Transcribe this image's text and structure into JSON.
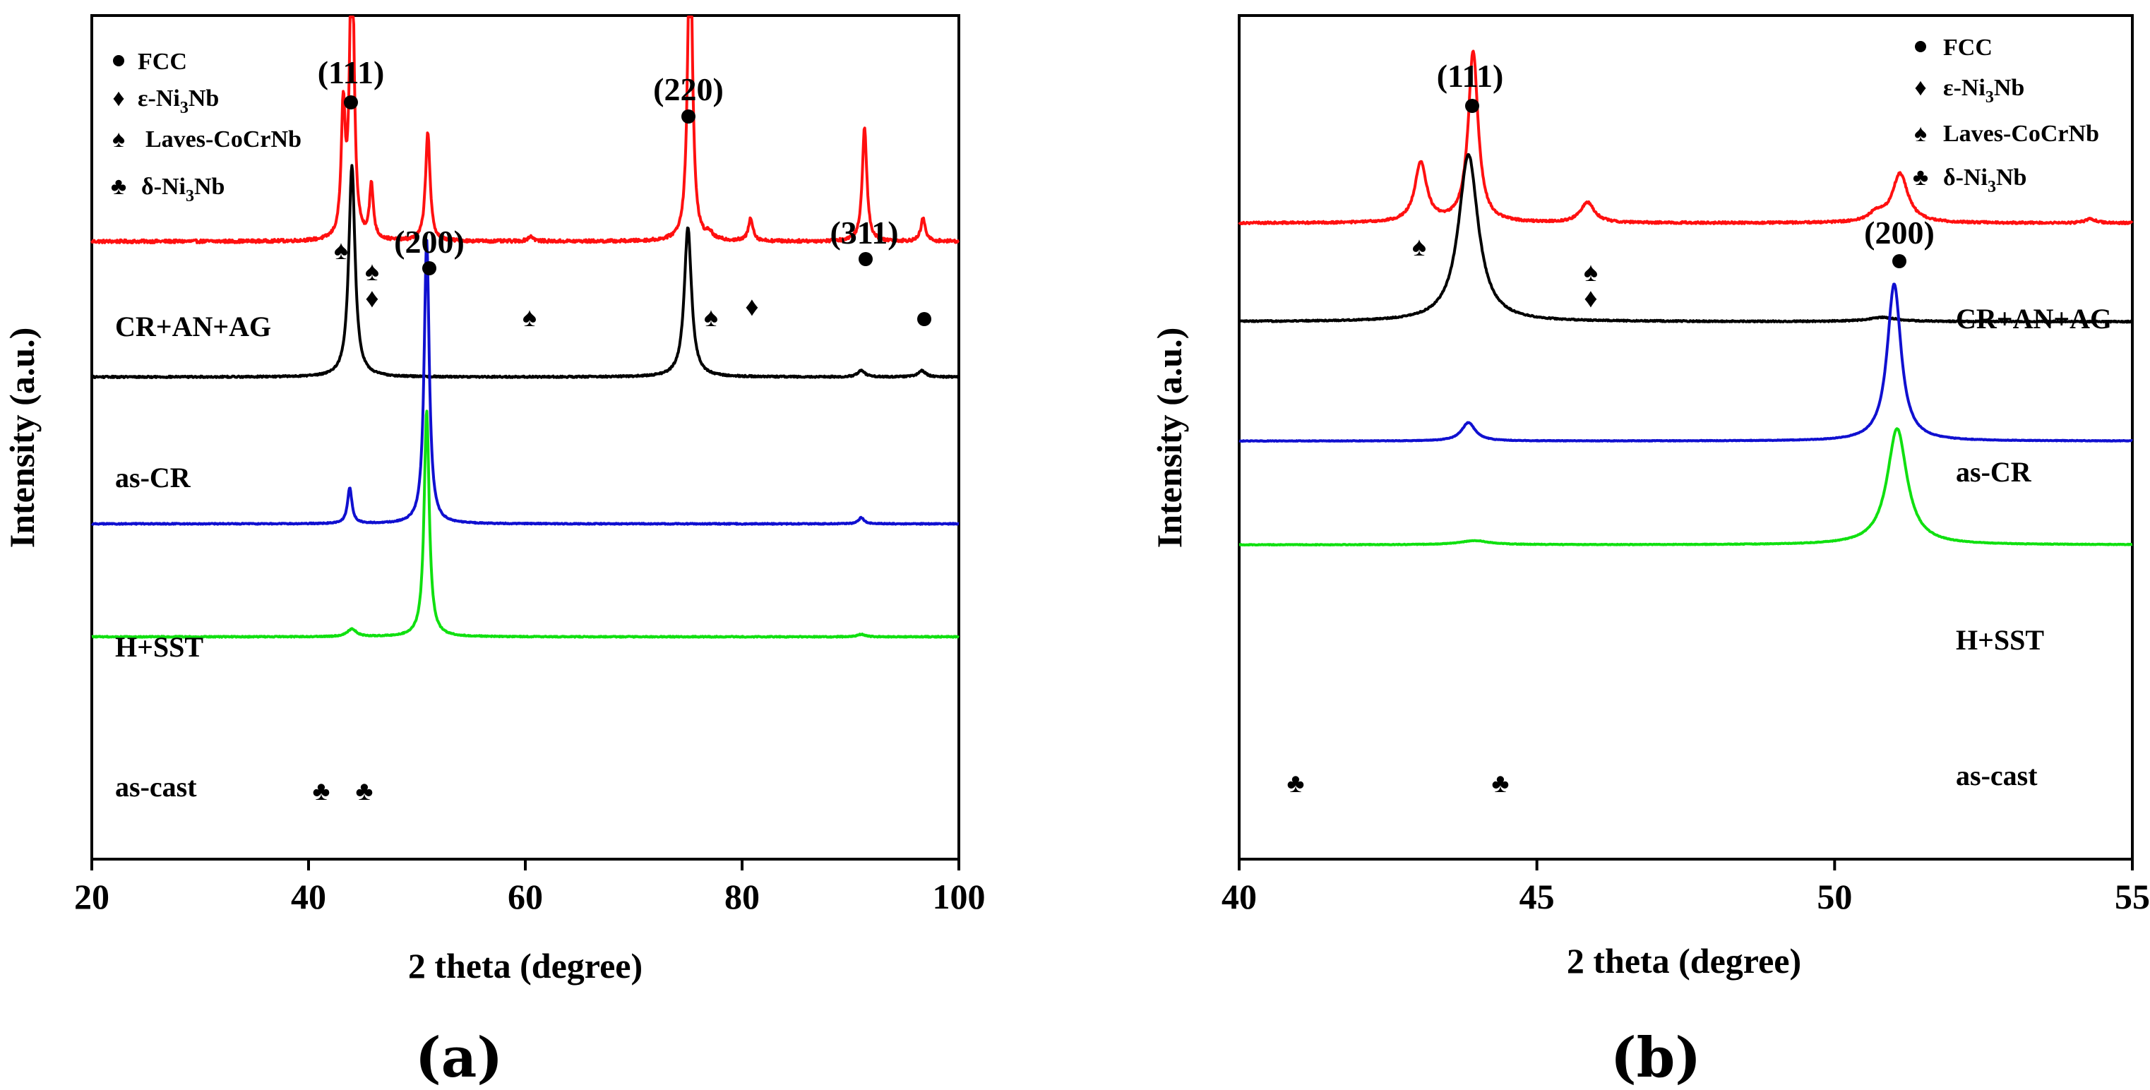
{
  "chart_data": [
    {
      "type": "line",
      "panel_caption": "(a)",
      "xlabel": "2 theta (degree)",
      "ylabel": "Intensity (a.u.)",
      "xlim": [
        20,
        100
      ],
      "xticks": [
        20,
        40,
        60,
        80,
        100
      ],
      "legend": [
        {
          "glyph": "●",
          "text": "FCC"
        },
        {
          "glyph": "♦",
          "text": "ε-Ni",
          "sub": "3",
          "text2": "Nb"
        },
        {
          "glyph": "♠",
          "text": "Laves-CoCrNb"
        },
        {
          "glyph": "♣",
          "text": "δ-Ni",
          "sub": "3",
          "text2": "Nb"
        }
      ],
      "series": [
        {
          "name": "CR+AN+AG",
          "color": "#ff1010",
          "baseline": 0.5,
          "noise": 0.06,
          "peaks": [
            [
              43.2,
              5.0,
              0.22
            ],
            [
              44.0,
              13.3,
              0.22
            ],
            [
              45.8,
              2.1,
              0.22
            ],
            [
              51.0,
              4.3,
              0.25
            ],
            [
              60.5,
              0.2,
              0.3
            ],
            [
              75.2,
              13.2,
              0.25
            ],
            [
              77.0,
              0.25,
              0.3
            ],
            [
              80.8,
              0.9,
              0.25
            ],
            [
              91.3,
              4.5,
              0.25
            ],
            [
              96.7,
              0.9,
              0.25
            ]
          ]
        },
        {
          "name": "as-CR",
          "color": "#000000",
          "baseline": 2.9,
          "noise": 0.03,
          "peaks": [
            [
              44.0,
              8.3,
              0.35
            ],
            [
              75.0,
              5.9,
              0.4
            ],
            [
              91.0,
              0.25,
              0.4
            ],
            [
              96.6,
              0.25,
              0.4
            ]
          ]
        },
        {
          "name": "H+SST",
          "color": "#1010d0",
          "baseline": 5.5,
          "noise": 0.02,
          "peaks": [
            [
              43.8,
              1.4,
              0.25
            ],
            [
              50.9,
              11.2,
              0.28
            ],
            [
              91.0,
              0.25,
              0.3
            ]
          ]
        },
        {
          "name": "as-cast",
          "color": "#10e010",
          "baseline": 7.5,
          "noise": 0.02,
          "peaks": [
            [
              44.0,
              0.3,
              0.5
            ],
            [
              50.9,
              8.9,
              0.28
            ],
            [
              91.0,
              0.1,
              0.4
            ]
          ]
        }
      ],
      "annotations": [
        {
          "text": "(111)",
          "x": 44.0,
          "kind": "peak"
        },
        {
          "text": "(200)",
          "x": 51.0,
          "kind": "peak"
        },
        {
          "text": "(220)",
          "x": 75.2,
          "kind": "peak"
        },
        {
          "text": "(311)",
          "x": 91.3,
          "kind": "peak"
        }
      ]
    },
    {
      "type": "line",
      "panel_caption": "(b)",
      "xlabel": "2 theta (degree)",
      "ylabel": "Intensity (a.u.)",
      "xlim": [
        40,
        55
      ],
      "xticks": [
        40,
        45,
        50,
        55
      ],
      "legend": [
        {
          "glyph": "●",
          "text": "FCC"
        },
        {
          "glyph": "♦",
          "text": "ε-Ni",
          "sub": "3",
          "text2": "Nb"
        },
        {
          "glyph": "♠",
          "text": "Laves-CoCrNb"
        },
        {
          "glyph": "♣",
          "text": "δ-Ni",
          "sub": "3",
          "text2": "Nb"
        }
      ],
      "series": [
        {
          "name": "CR+AN+AG",
          "color": "#ff1010",
          "baseline": 0.5,
          "noise": 0.05,
          "peaks": [
            [
              43.05,
              2.9,
              0.12
            ],
            [
              43.93,
              8.4,
              0.1
            ],
            [
              45.85,
              1.0,
              0.14
            ],
            [
              50.7,
              0.4,
              0.15
            ],
            [
              51.1,
              2.4,
              0.16
            ],
            [
              54.3,
              0.2,
              0.1
            ]
          ]
        },
        {
          "name": "as-CR",
          "color": "#000000",
          "baseline": 2.4,
          "noise": 0.03,
          "peaks": [
            [
              43.85,
              8.2,
              0.2
            ],
            [
              50.8,
              0.2,
              0.3
            ]
          ]
        },
        {
          "name": "H+SST",
          "color": "#1010d0",
          "baseline": 4.7,
          "noise": 0.015,
          "peaks": [
            [
              43.85,
              0.9,
              0.14
            ],
            [
              51.0,
              7.7,
              0.14
            ]
          ]
        },
        {
          "name": "as-cast",
          "color": "#10e010",
          "baseline": 6.7,
          "noise": 0.015,
          "peaks": [
            [
              43.95,
              0.2,
              0.3
            ],
            [
              51.05,
              5.7,
              0.2
            ]
          ]
        }
      ],
      "annotations": [
        {
          "text": "(111)",
          "x": 43.93,
          "kind": "peak"
        },
        {
          "text": "(200)",
          "x": 51.1,
          "kind": "peak"
        }
      ]
    }
  ]
}
